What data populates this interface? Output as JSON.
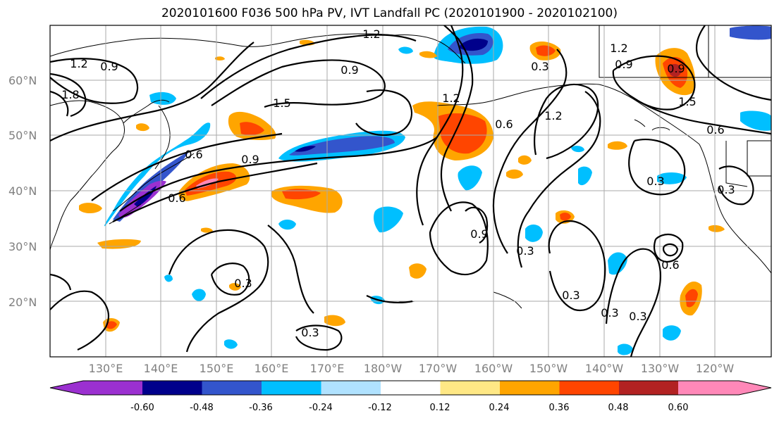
{
  "title": "2020101600 F036 500 hPa PV, IVT Landfall PC (2020101900 - 2020102100)",
  "lat_labels": [
    "60°N",
    "50°N",
    "40°N",
    "30°N",
    "20°N"
  ],
  "lon_labels": [
    "130°E",
    "140°E",
    "150°E",
    "160°E",
    "170°E",
    "180°W",
    "170°W",
    "160°W",
    "150°W",
    "140°W",
    "130°W",
    "120°W"
  ],
  "colorbar": {
    "colors": [
      "#9b30d0",
      "#00008b",
      "#3355cc",
      "#00bfff",
      "#b0e2ff",
      "#ffffff",
      "#ffe885",
      "#ffa500",
      "#ff4500",
      "#b22222",
      "#ff88b8"
    ],
    "tick_labels": [
      "-0.60",
      "-0.48",
      "-0.36",
      "-0.24",
      "-0.12",
      "0.12",
      "0.24",
      "0.36",
      "0.48",
      "0.60"
    ]
  },
  "contour_labels": [
    "1.2",
    "0.9",
    "1.2",
    "1.8",
    "1.5",
    "0.9",
    "1.2",
    "0.3",
    "1.2",
    "0.9",
    "0.9",
    "1.5",
    "0.6",
    "0.9",
    "0.6",
    "0.6",
    "1.2",
    "0.6",
    "0.3",
    "0.9",
    "0.3",
    "0.6",
    "0.3",
    "0.3",
    "0.3",
    "0.3",
    "0.3",
    "0.3"
  ]
}
